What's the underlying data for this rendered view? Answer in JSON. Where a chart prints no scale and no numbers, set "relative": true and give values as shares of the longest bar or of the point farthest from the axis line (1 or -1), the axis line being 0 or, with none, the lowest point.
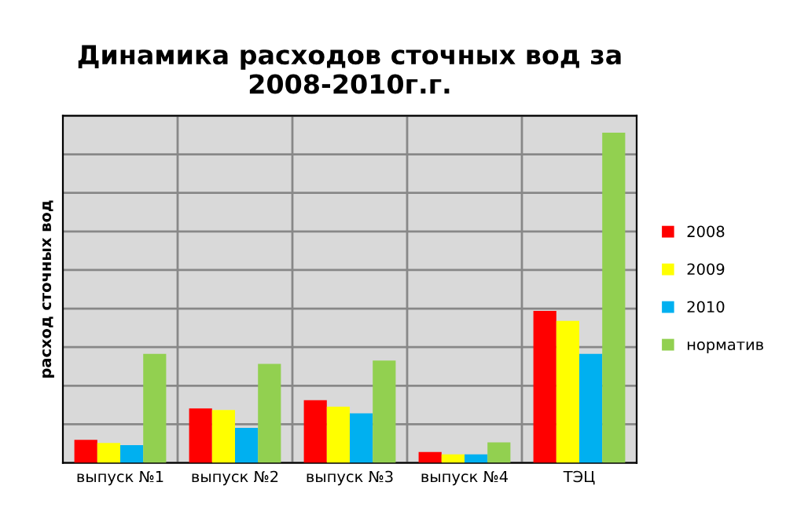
{
  "chart_data": {
    "type": "bar",
    "title": "Динамика расходов сточных вод за 2008-2010г.г.",
    "ylabel": "расход сточных вод",
    "categories": [
      "выпуск №1",
      "выпуск №2",
      "выпуск №3",
      "выпуск №4",
      "ТЭЦ"
    ],
    "relative": true,
    "grid": true,
    "legend": "right",
    "tick_labels": "x",
    "series": [
      {
        "name": "2008",
        "color": "#ff0000",
        "values": [
          0.07,
          0.165,
          0.19,
          0.033,
          0.46
        ]
      },
      {
        "name": "2009",
        "color": "#ffff00",
        "values": [
          0.06,
          0.16,
          0.17,
          0.026,
          0.43
        ]
      },
      {
        "name": "2010",
        "color": "#00b0f0",
        "values": [
          0.054,
          0.106,
          0.15,
          0.026,
          0.33
        ]
      },
      {
        "name": "норматив",
        "color": "#92d050",
        "values": [
          0.33,
          0.3,
          0.31,
          0.062,
          1
        ]
      }
    ]
  }
}
